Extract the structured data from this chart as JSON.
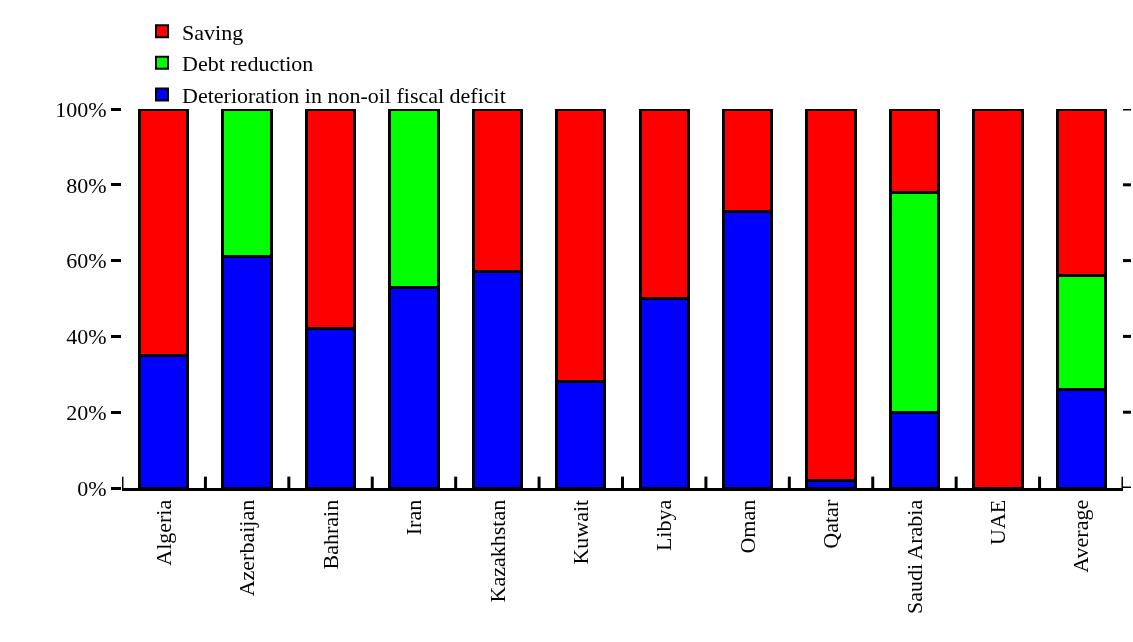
{
  "chart_data": {
    "type": "bar",
    "stacked": true,
    "categories": [
      "Algeria",
      "Azerbaijan",
      "Bahrain",
      "Iran",
      "Kazakhstan",
      "Kuwait",
      "Libya",
      "Oman",
      "Qatar",
      "Saudi Arabia",
      "UAE",
      "Average"
    ],
    "series": [
      {
        "name": "Deterioration in non-oil fiscal deficit",
        "color": "#0000ff",
        "values": [
          35,
          61,
          42,
          53,
          57,
          28,
          50,
          73,
          2,
          20,
          0,
          26
        ]
      },
      {
        "name": "Debt reduction",
        "color": "#00ff00",
        "values": [
          0,
          39,
          0,
          47,
          0,
          0,
          0,
          0,
          0,
          58,
          0,
          30
        ]
      },
      {
        "name": "Saving",
        "color": "#ff0000",
        "values": [
          65,
          0,
          58,
          0,
          43,
          72,
          50,
          27,
          98,
          22,
          100,
          44
        ]
      }
    ],
    "ylim": [
      0,
      100
    ],
    "yticks": [
      {
        "value": 0,
        "label": "0%"
      },
      {
        "value": 20,
        "label": "20%"
      },
      {
        "value": 40,
        "label": "40%"
      },
      {
        "value": 60,
        "label": "60%"
      },
      {
        "value": 80,
        "label": "80%"
      },
      {
        "value": 100,
        "label": "100%"
      }
    ],
    "grid": false,
    "legend": "top left"
  }
}
